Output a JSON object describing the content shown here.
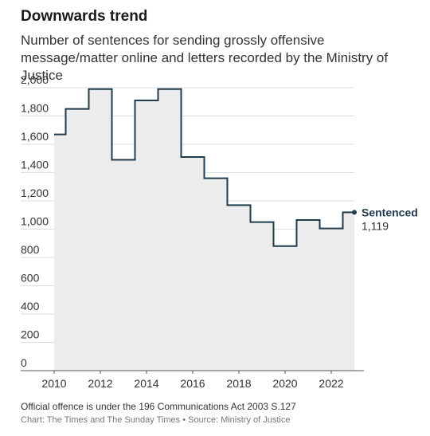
{
  "header": {
    "title": "Downwards trend",
    "subtitle": "Number of sentences for sending grossly offensive message/matter online and letters recorded by the Ministry of Justice"
  },
  "footer": {
    "note": "Official offence is under the 196 Communications Act 2003 S.127",
    "source": "Chart: The Times and The Sunday Times • Source: Ministry of Justice"
  },
  "colors": {
    "line": "#1f3b4d",
    "area": "#ececec",
    "grid": "#dddddd",
    "axis": "#555555"
  },
  "chart_data": {
    "type": "area",
    "style": "step",
    "title": "Downwards trend",
    "subtitle": "Number of sentences for sending grossly offensive message/matter online and letters recorded by the Ministry of Justice",
    "xlabel": "",
    "ylabel": "",
    "xlim": [
      2010,
      2023
    ],
    "ylim": [
      0,
      2000
    ],
    "grid": true,
    "xticks": [
      2010,
      2012,
      2014,
      2016,
      2018,
      2020,
      2022
    ],
    "xtick_labels": [
      "2010",
      "2012",
      "2014",
      "2016",
      "2018",
      "2020",
      "2022"
    ],
    "yticks": [
      0,
      200,
      400,
      600,
      800,
      1000,
      1200,
      1400,
      1600,
      1800,
      2000
    ],
    "ytick_labels": [
      "0",
      "200",
      "400",
      "600",
      "800",
      "1,000",
      "1,200",
      "1,400",
      "1,600",
      "1,800",
      "2,000"
    ],
    "series": [
      {
        "name": "Sentenced",
        "end_value_label": "1,119",
        "points": [
          {
            "x": 2010.0,
            "y": 1670
          },
          {
            "x": 2010.5,
            "y": 1850
          },
          {
            "x": 2011.5,
            "y": 1990
          },
          {
            "x": 2012.5,
            "y": 1490
          },
          {
            "x": 2013.5,
            "y": 1910
          },
          {
            "x": 2014.5,
            "y": 1990
          },
          {
            "x": 2015.5,
            "y": 1510
          },
          {
            "x": 2016.5,
            "y": 1360
          },
          {
            "x": 2017.5,
            "y": 1170
          },
          {
            "x": 2018.5,
            "y": 1050
          },
          {
            "x": 2019.5,
            "y": 880
          },
          {
            "x": 2020.5,
            "y": 1065
          },
          {
            "x": 2021.5,
            "y": 1005
          },
          {
            "x": 2022.5,
            "y": 1119
          }
        ],
        "end_x": 2023.0
      }
    ]
  }
}
